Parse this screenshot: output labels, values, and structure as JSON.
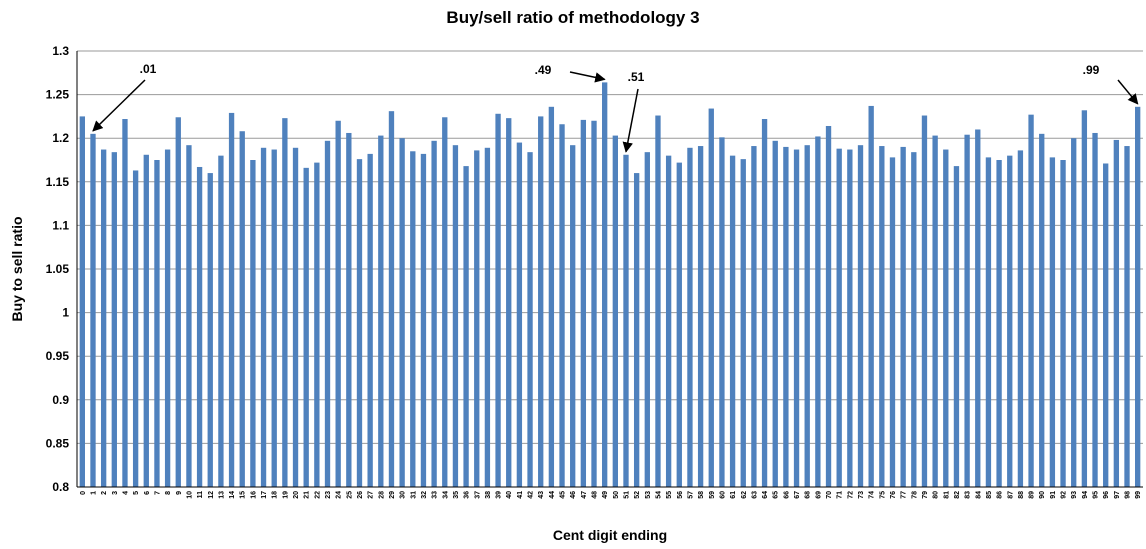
{
  "chart_data": {
    "type": "bar",
    "title": "Buy/sell ratio of methodology 3",
    "xlabel": "Cent digit ending",
    "ylabel": "Buy to sell ratio",
    "ylim": [
      0.8,
      1.3
    ],
    "yticks": [
      "0.8",
      "0.85",
      "0.9",
      "0.95",
      "1",
      "1.05",
      "1.1",
      "1.15",
      "1.2",
      "1.25",
      "1.3"
    ],
    "grid": true,
    "bar_color": "#4F81BD",
    "categories": [
      "0",
      "1",
      "2",
      "3",
      "4",
      "5",
      "6",
      "7",
      "8",
      "9",
      "10",
      "11",
      "12",
      "13",
      "14",
      "15",
      "16",
      "17",
      "18",
      "19",
      "20",
      "21",
      "22",
      "23",
      "24",
      "25",
      "26",
      "27",
      "28",
      "29",
      "30",
      "31",
      "32",
      "33",
      "34",
      "35",
      "36",
      "37",
      "38",
      "39",
      "40",
      "41",
      "42",
      "43",
      "44",
      "45",
      "46",
      "47",
      "48",
      "49",
      "50",
      "51",
      "52",
      "53",
      "54",
      "55",
      "56",
      "57",
      "58",
      "59",
      "60",
      "61",
      "62",
      "63",
      "64",
      "65",
      "66",
      "67",
      "68",
      "69",
      "70",
      "71",
      "72",
      "73",
      "74",
      "75",
      "76",
      "77",
      "78",
      "79",
      "80",
      "81",
      "82",
      "83",
      "84",
      "85",
      "86",
      "87",
      "88",
      "89",
      "90",
      "91",
      "92",
      "93",
      "94",
      "95",
      "96",
      "97",
      "98",
      "99"
    ],
    "values": [
      1.225,
      1.205,
      1.187,
      1.184,
      1.222,
      1.163,
      1.181,
      1.175,
      1.187,
      1.224,
      1.192,
      1.167,
      1.16,
      1.18,
      1.229,
      1.208,
      1.175,
      1.189,
      1.187,
      1.223,
      1.189,
      1.166,
      1.172,
      1.197,
      1.22,
      1.206,
      1.176,
      1.182,
      1.203,
      1.231,
      1.2,
      1.185,
      1.182,
      1.197,
      1.224,
      1.192,
      1.168,
      1.186,
      1.189,
      1.228,
      1.223,
      1.195,
      1.184,
      1.225,
      1.236,
      1.216,
      1.192,
      1.221,
      1.22,
      1.264,
      1.203,
      1.181,
      1.16,
      1.184,
      1.226,
      1.18,
      1.172,
      1.189,
      1.191,
      1.234,
      1.201,
      1.18,
      1.176,
      1.191,
      1.222,
      1.197,
      1.19,
      1.187,
      1.192,
      1.202,
      1.214,
      1.188,
      1.187,
      1.192,
      1.237,
      1.191,
      1.178,
      1.19,
      1.184,
      1.226,
      1.203,
      1.187,
      1.168,
      1.204,
      1.21,
      1.178,
      1.175,
      1.18,
      1.186,
      1.227,
      1.205,
      1.178,
      1.175,
      1.2,
      1.232,
      1.206,
      1.171,
      1.198,
      1.191,
      1.236
    ],
    "annotations": [
      {
        "label": ".01",
        "category": "1"
      },
      {
        "label": ".49",
        "category": "49"
      },
      {
        "label": ".51",
        "category": "51"
      },
      {
        "label": ".99",
        "category": "99"
      }
    ]
  }
}
